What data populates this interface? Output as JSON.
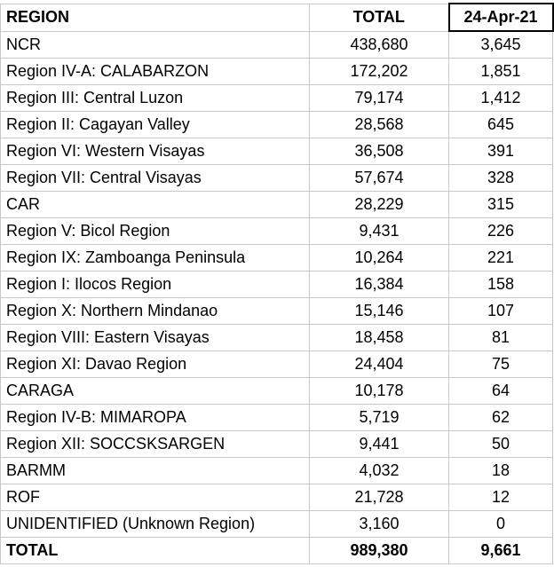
{
  "table": {
    "header": [
      "REGION",
      "TOTAL",
      "24-Apr-21"
    ],
    "rows": [
      [
        "NCR",
        "438,680",
        "3,645"
      ],
      [
        "Region IV-A: CALABARZON",
        "172,202",
        "1,851"
      ],
      [
        "Region III: Central Luzon",
        "79,174",
        "1,412"
      ],
      [
        "Region II: Cagayan Valley",
        "28,568",
        "645"
      ],
      [
        "Region VI: Western Visayas",
        "36,508",
        "391"
      ],
      [
        "Region VII: Central Visayas",
        "57,674",
        "328"
      ],
      [
        "CAR",
        "28,229",
        "315"
      ],
      [
        "Region V: Bicol Region",
        "9,431",
        "226"
      ],
      [
        "Region IX: Zamboanga Peninsula",
        "10,264",
        "221"
      ],
      [
        "Region I: Ilocos Region",
        "16,384",
        "158"
      ],
      [
        "Region X: Northern Mindanao",
        "15,146",
        "107"
      ],
      [
        "Region VIII: Eastern Visayas",
        "18,458",
        "81"
      ],
      [
        "Region XI: Davao Region",
        "24,404",
        "75"
      ],
      [
        "CARAGA",
        "10,178",
        "64"
      ],
      [
        "Region IV-B: MIMAROPA",
        "5,719",
        "62"
      ],
      [
        "Region XII: SOCCSKSARGEN",
        "9,441",
        "50"
      ],
      [
        "BARMM",
        "4,032",
        "18"
      ],
      [
        "ROF",
        "21,728",
        "12"
      ],
      [
        "UNIDENTIFIED (Unknown Region)",
        "3,160",
        "0"
      ]
    ],
    "total": [
      "TOTAL",
      "989,380",
      "9,661"
    ]
  }
}
